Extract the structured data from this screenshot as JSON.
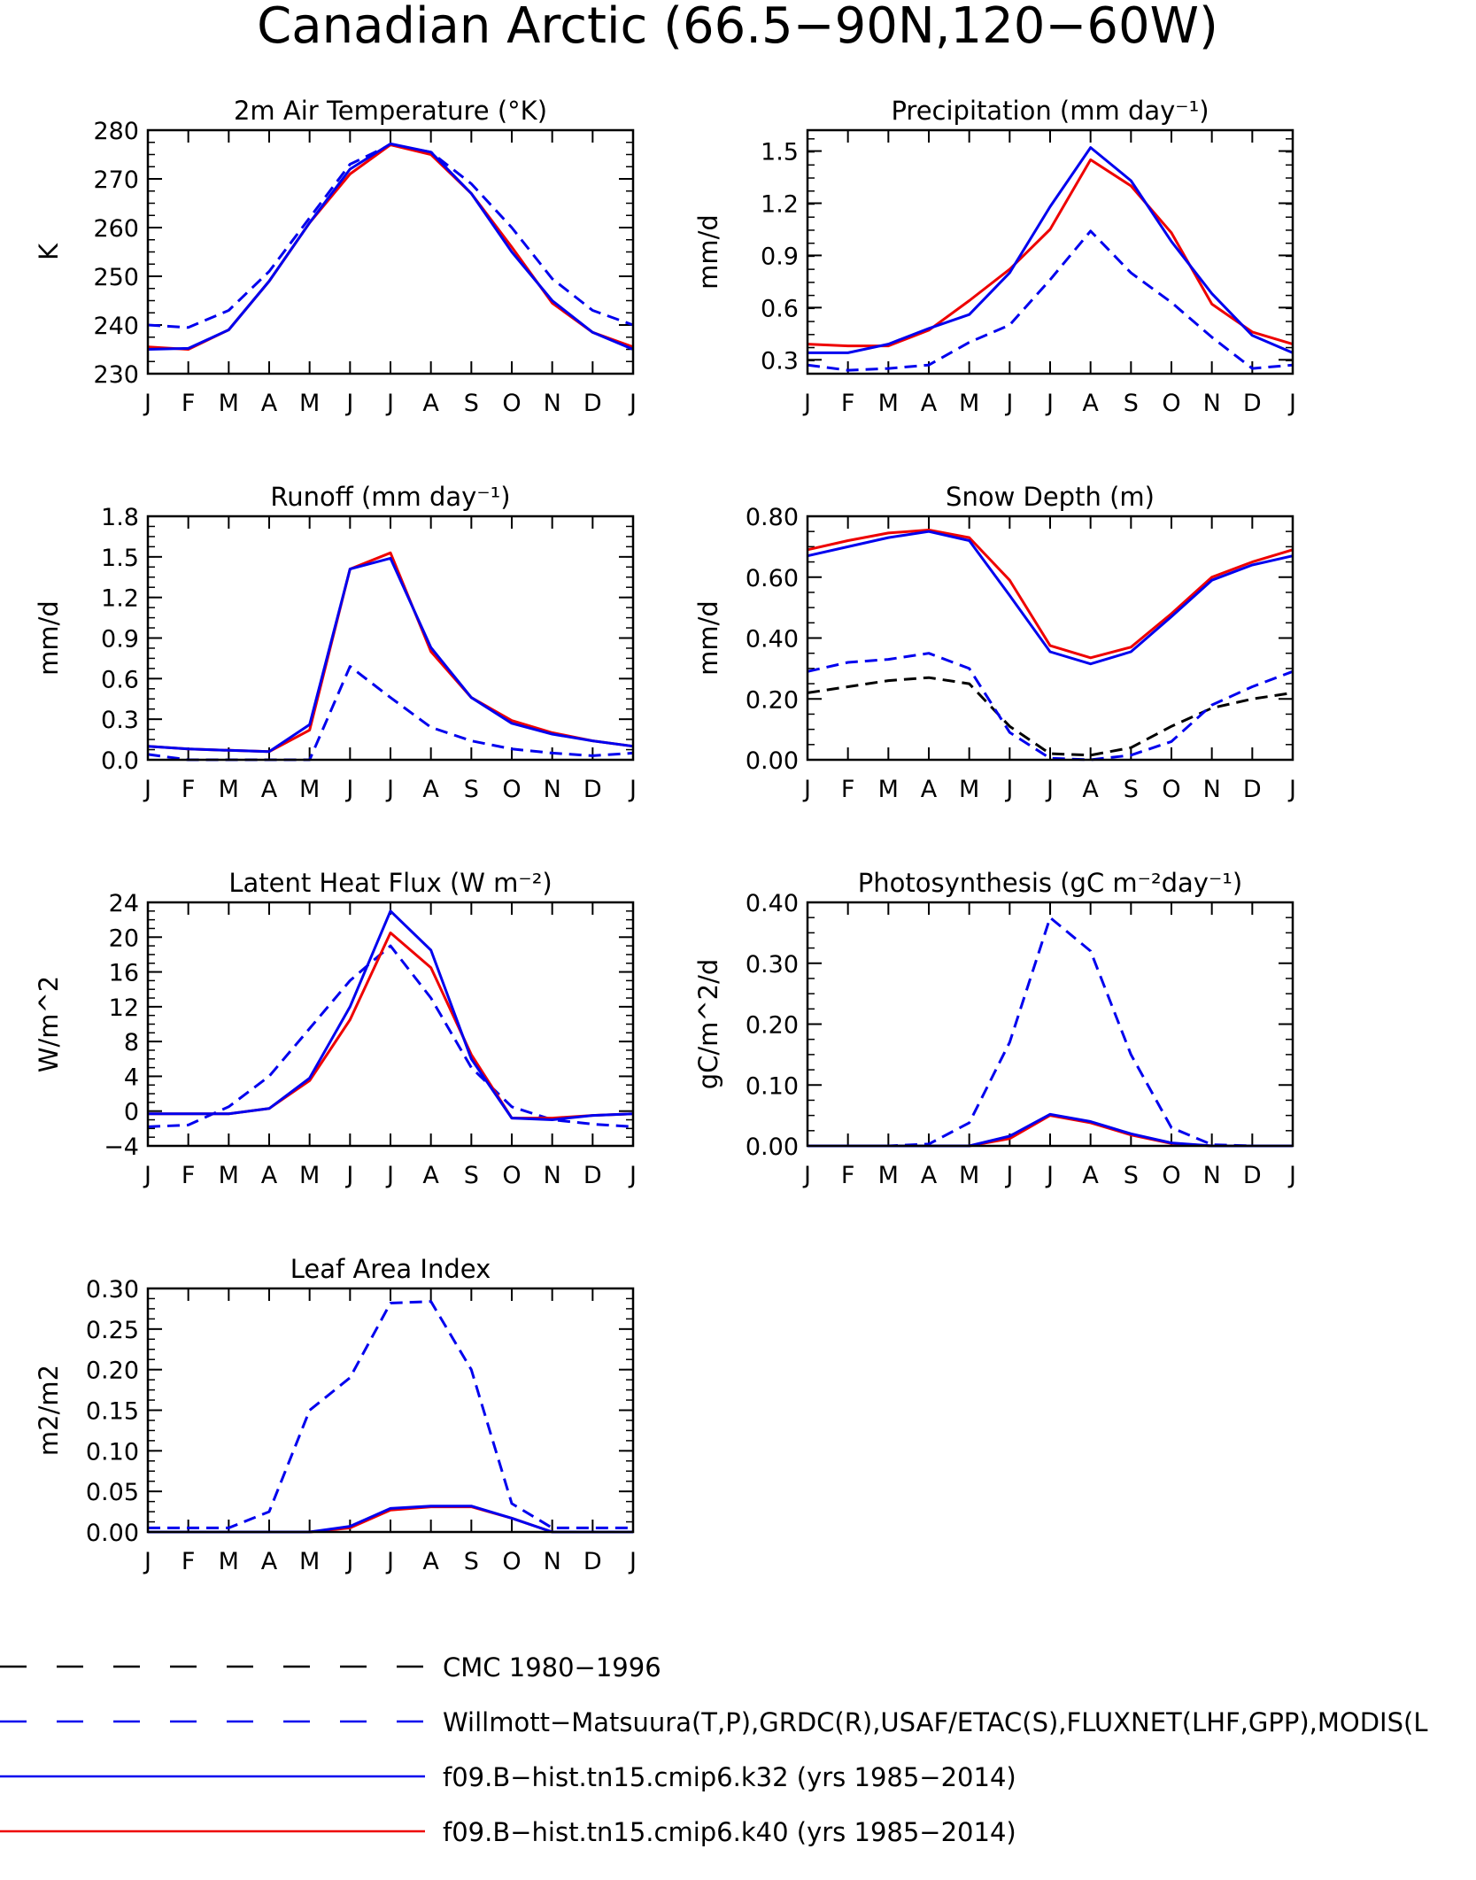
{
  "figure": {
    "title": "Canadian Arctic (66.5−90N,120−60W)"
  },
  "styles": {
    "CMC": {
      "color": "#000000",
      "dashed": true
    },
    "OBS": {
      "color": "#0000ee",
      "dashed": true
    },
    "k32": {
      "color": "#0000ee",
      "dashed": false
    },
    "k40": {
      "color": "#ee0000",
      "dashed": false
    }
  },
  "legend": [
    {
      "key": "CMC",
      "label": "CMC 1980−1996"
    },
    {
      "key": "OBS",
      "label": "Willmott−Matsuura(T,P),GRDC(R),USAF/ETAC(S),FLUXNET(LHF,GPP),MODIS(L"
    },
    {
      "key": "k32",
      "label": "f09.B−hist.tn15.cmip6.k32 (yrs 1985−2014)"
    },
    {
      "key": "k40",
      "label": "f09.B−hist.tn15.cmip6.k40 (yrs 1985−2014)"
    }
  ],
  "chart_data": [
    {
      "type": "line",
      "title": "2m Air Temperature (°K)",
      "ylabel": "K",
      "categories": [
        "J",
        "F",
        "M",
        "A",
        "M",
        "J",
        "J",
        "A",
        "S",
        "O",
        "N",
        "D",
        "J"
      ],
      "ylim": [
        230,
        280
      ],
      "yticks": [
        "230",
        "240",
        "250",
        "260",
        "270",
        "280"
      ],
      "series": [
        {
          "key": "OBS",
          "values": [
            240,
            239.5,
            243,
            251,
            262,
            273,
            277,
            275.5,
            269,
            260,
            249.5,
            243,
            240
          ]
        },
        {
          "key": "k40",
          "values": [
            235.5,
            235,
            239,
            249,
            261,
            271,
            277,
            275,
            267,
            256,
            244.5,
            238.5,
            235.5
          ]
        },
        {
          "key": "k32",
          "values": [
            235,
            235.2,
            239,
            249,
            261,
            272,
            277.2,
            275.5,
            267,
            255,
            245,
            238.5,
            235
          ]
        }
      ]
    },
    {
      "type": "line",
      "title": "Precipitation (mm day⁻¹)",
      "ylabel": "mm/d",
      "categories": [
        "J",
        "F",
        "M",
        "A",
        "M",
        "J",
        "J",
        "A",
        "S",
        "O",
        "N",
        "D",
        "J"
      ],
      "ylim": [
        0.22,
        1.62
      ],
      "yticks": [
        "0.3",
        "0.6",
        "0.9",
        "1.2",
        "1.5"
      ],
      "series": [
        {
          "key": "OBS",
          "values": [
            0.27,
            0.24,
            0.25,
            0.27,
            0.4,
            0.5,
            0.76,
            1.04,
            0.8,
            0.63,
            0.43,
            0.25,
            0.27
          ]
        },
        {
          "key": "k40",
          "values": [
            0.39,
            0.38,
            0.38,
            0.47,
            0.64,
            0.82,
            1.05,
            1.45,
            1.3,
            1.03,
            0.62,
            0.46,
            0.39
          ]
        },
        {
          "key": "k32",
          "values": [
            0.34,
            0.34,
            0.39,
            0.48,
            0.56,
            0.8,
            1.18,
            1.52,
            1.33,
            0.98,
            0.68,
            0.44,
            0.34
          ]
        }
      ]
    },
    {
      "type": "line",
      "title": "Runoff (mm day⁻¹)",
      "ylabel": "mm/d",
      "categories": [
        "J",
        "F",
        "M",
        "A",
        "M",
        "J",
        "J",
        "A",
        "S",
        "O",
        "N",
        "D",
        "J"
      ],
      "ylim": [
        0,
        1.8
      ],
      "yticks": [
        "0.0",
        "0.3",
        "0.6",
        "0.9",
        "1.2",
        "1.5",
        "1.8"
      ],
      "series": [
        {
          "key": "OBS",
          "values": [
            0.04,
            0.0,
            0.0,
            0.0,
            0.0,
            0.69,
            0.46,
            0.24,
            0.14,
            0.08,
            0.05,
            0.03,
            0.05
          ]
        },
        {
          "key": "k40",
          "values": [
            0.1,
            0.08,
            0.07,
            0.06,
            0.22,
            1.41,
            1.53,
            0.8,
            0.46,
            0.29,
            0.2,
            0.14,
            0.1
          ]
        },
        {
          "key": "k32",
          "values": [
            0.1,
            0.08,
            0.07,
            0.06,
            0.26,
            1.41,
            1.49,
            0.83,
            0.46,
            0.27,
            0.19,
            0.14,
            0.1
          ]
        }
      ]
    },
    {
      "type": "line",
      "title": "Snow Depth (m)",
      "ylabel": "mm/d",
      "categories": [
        "J",
        "F",
        "M",
        "A",
        "M",
        "J",
        "J",
        "A",
        "S",
        "O",
        "N",
        "D",
        "J"
      ],
      "ylim": [
        0,
        0.8
      ],
      "yticks": [
        "0.00",
        "0.20",
        "0.40",
        "0.60",
        "0.80"
      ],
      "series": [
        {
          "key": "CMC",
          "values": [
            0.22,
            0.24,
            0.26,
            0.27,
            0.25,
            0.11,
            0.02,
            0.015,
            0.04,
            0.11,
            0.17,
            0.2,
            0.22
          ]
        },
        {
          "key": "OBS",
          "values": [
            0.29,
            0.32,
            0.33,
            0.35,
            0.3,
            0.09,
            0.005,
            0.0,
            0.015,
            0.06,
            0.18,
            0.24,
            0.29
          ]
        },
        {
          "key": "k40",
          "values": [
            0.69,
            0.72,
            0.745,
            0.755,
            0.73,
            0.59,
            0.375,
            0.335,
            0.37,
            0.48,
            0.6,
            0.65,
            0.69
          ]
        },
        {
          "key": "k32",
          "values": [
            0.67,
            0.7,
            0.73,
            0.75,
            0.72,
            0.54,
            0.355,
            0.315,
            0.355,
            0.47,
            0.59,
            0.64,
            0.67
          ]
        }
      ]
    },
    {
      "type": "line",
      "title": "Latent Heat Flux (W m⁻²)",
      "ylabel": "W/m^2",
      "categories": [
        "J",
        "F",
        "M",
        "A",
        "M",
        "J",
        "J",
        "A",
        "S",
        "O",
        "N",
        "D",
        "J"
      ],
      "ylim": [
        -4,
        24
      ],
      "yticks": [
        "−4",
        "0",
        "4",
        "8",
        "12",
        "16",
        "20",
        "24"
      ],
      "series": [
        {
          "key": "OBS",
          "values": [
            -1.8,
            -1.6,
            0.5,
            4,
            9.5,
            15,
            19,
            13,
            5,
            0.5,
            -1,
            -1.5,
            -1.8
          ]
        },
        {
          "key": "k40",
          "values": [
            -0.3,
            -0.3,
            -0.3,
            0.3,
            3.5,
            10.5,
            20.5,
            16.5,
            6.5,
            -0.8,
            -0.8,
            -0.5,
            -0.3
          ]
        },
        {
          "key": "k32",
          "values": [
            -0.3,
            -0.3,
            -0.3,
            0.3,
            3.8,
            12,
            23,
            18.5,
            6,
            -0.8,
            -1,
            -0.5,
            -0.3
          ]
        }
      ]
    },
    {
      "type": "line",
      "title": "Photosynthesis (gC m⁻²day⁻¹)",
      "ylabel": "gC/m^2/d",
      "categories": [
        "J",
        "F",
        "M",
        "A",
        "M",
        "J",
        "J",
        "A",
        "S",
        "O",
        "N",
        "D",
        "J"
      ],
      "ylim": [
        0,
        0.4
      ],
      "yticks": [
        "0.00",
        "0.10",
        "0.20",
        "0.30",
        "0.40"
      ],
      "series": [
        {
          "key": "OBS",
          "values": [
            0,
            0,
            0,
            0.003,
            0.038,
            0.17,
            0.375,
            0.32,
            0.15,
            0.03,
            0.002,
            0,
            0
          ]
        },
        {
          "key": "k40",
          "values": [
            0,
            0,
            0,
            0,
            0,
            0.012,
            0.05,
            0.038,
            0.018,
            0.004,
            0,
            0,
            0
          ]
        },
        {
          "key": "k32",
          "values": [
            0,
            0,
            0,
            0,
            0,
            0.016,
            0.052,
            0.04,
            0.02,
            0.005,
            0,
            0,
            0
          ]
        }
      ]
    },
    {
      "type": "line",
      "title": "Leaf Area Index",
      "ylabel": "m2/m2",
      "categories": [
        "J",
        "F",
        "M",
        "A",
        "M",
        "J",
        "J",
        "A",
        "S",
        "O",
        "N",
        "D",
        "J"
      ],
      "ylim": [
        0,
        0.3
      ],
      "yticks": [
        "0.00",
        "0.05",
        "0.10",
        "0.15",
        "0.20",
        "0.25",
        "0.30"
      ],
      "series": [
        {
          "key": "OBS",
          "values": [
            0.005,
            0.005,
            0.005,
            0.025,
            0.15,
            0.19,
            0.282,
            0.284,
            0.2,
            0.035,
            0.005,
            0.005,
            0.005
          ]
        },
        {
          "key": "k40",
          "values": [
            0,
            0,
            0,
            0,
            0,
            0.005,
            0.027,
            0.031,
            0.031,
            0.017,
            0,
            0,
            0
          ]
        },
        {
          "key": "k32",
          "values": [
            0,
            0,
            0,
            0,
            0,
            0.007,
            0.029,
            0.032,
            0.032,
            0.017,
            0,
            0,
            0
          ]
        }
      ]
    }
  ]
}
